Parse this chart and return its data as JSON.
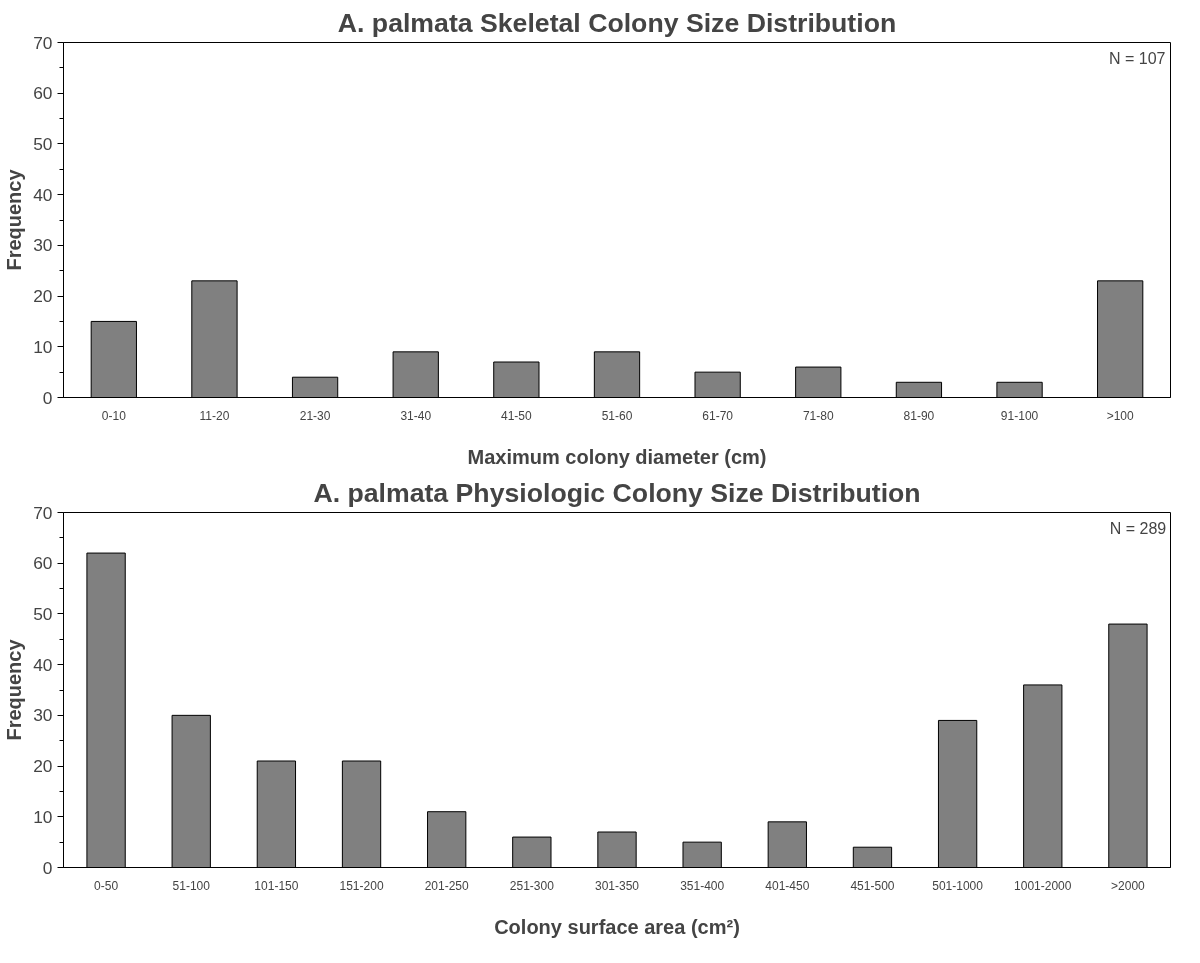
{
  "chart_data": [
    {
      "type": "bar",
      "title": "A. palmata Skeletal Colony Size Distribution",
      "xlabel": "Maximum colony diameter (cm)",
      "ylabel": "Frequency",
      "categories": [
        "0-10",
        "11-20",
        "21-30",
        "31-40",
        "41-50",
        "51-60",
        "61-70",
        "71-80",
        "81-90",
        "91-100",
        ">100"
      ],
      "values": [
        15,
        23,
        4,
        9,
        7,
        9,
        5,
        6,
        3,
        3,
        23
      ],
      "color": "#808080",
      "ylim": [
        0,
        70
      ],
      "yticks": [
        0,
        10,
        20,
        30,
        40,
        50,
        60,
        70
      ],
      "grid": false,
      "annotations": [
        "N = 107"
      ]
    },
    {
      "type": "bar",
      "title": "A. palmata Physiologic Colony Size Distribution",
      "xlabel": "Colony surface area (cm²)",
      "ylabel": "Frequency",
      "categories": [
        "0-50",
        "51-100",
        "101-150",
        "151-200",
        "201-250",
        "251-300",
        "301-350",
        "351-400",
        "401-450",
        "451-500",
        "501-1000",
        "1001-2000",
        ">2000"
      ],
      "values": [
        62,
        30,
        21,
        21,
        11,
        6,
        7,
        5,
        9,
        4,
        29,
        36,
        48
      ],
      "color": "#808080",
      "ylim": [
        0,
        70
      ],
      "yticks": [
        0,
        10,
        20,
        30,
        40,
        50,
        60,
        70
      ],
      "grid": false,
      "annotations": [
        "N = 289"
      ]
    }
  ]
}
